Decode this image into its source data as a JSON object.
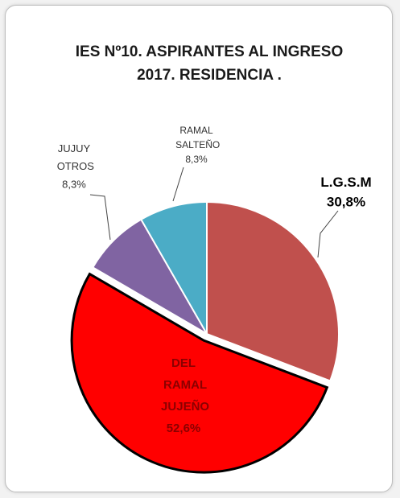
{
  "chart_data": {
    "type": "pie",
    "title": "IES Nº10. ASPIRANTES AL INGRESO 2017. RESIDENCIA .",
    "categories": [
      "L.G.S.M",
      "DEL RAMAL JUJEÑO",
      "JUJUY OTROS",
      "RAMAL SALTEÑO"
    ],
    "values": [
      30.8,
      52.6,
      8.3,
      8.3
    ],
    "value_labels": [
      "30,8%",
      "52,6%",
      "8,3%",
      "8,3%"
    ],
    "colors": [
      "#c0504d",
      "#ff0000",
      "#8064a2",
      "#4bacc6"
    ]
  }
}
